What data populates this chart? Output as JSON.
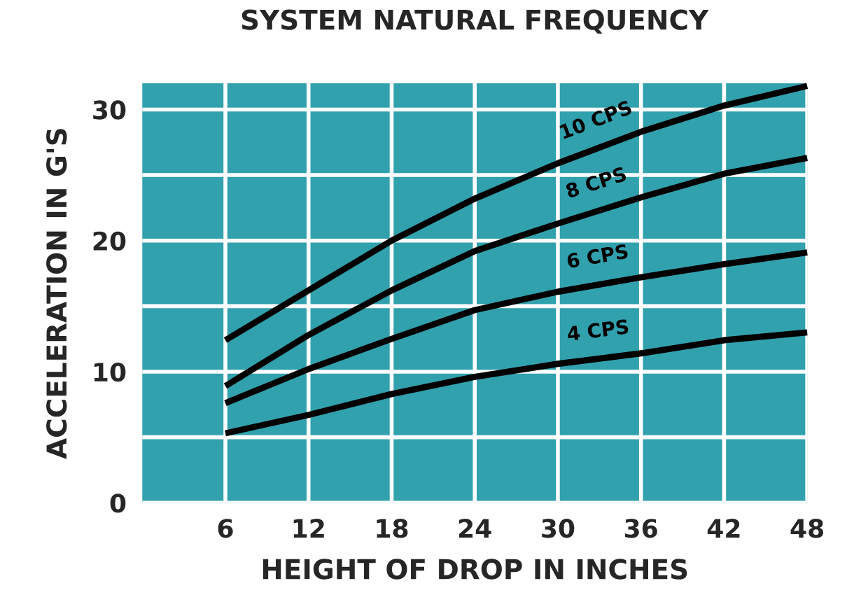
{
  "chart_data": {
    "type": "line",
    "title": "SYSTEM NATURAL FREQUENCY",
    "xlabel": "HEIGHT OF DROP IN INCHES",
    "ylabel": "ACCELERATION IN G'S",
    "x": [
      6,
      12,
      18,
      24,
      30,
      36,
      42,
      48
    ],
    "series": [
      {
        "name": "10 CPS",
        "color": "#000000",
        "values": [
          12.4,
          16.2,
          20.0,
          23.2,
          25.9,
          28.3,
          30.3,
          31.8
        ]
      },
      {
        "name": "8 CPS",
        "color": "#000000",
        "values": [
          8.9,
          12.8,
          16.2,
          19.2,
          21.3,
          23.3,
          25.1,
          26.3
        ]
      },
      {
        "name": "6 CPS",
        "color": "#000000",
        "values": [
          7.6,
          10.2,
          12.5,
          14.7,
          16.1,
          17.2,
          18.2,
          19.1
        ]
      },
      {
        "name": "4 CPS",
        "color": "#000000",
        "values": [
          5.3,
          6.7,
          8.3,
          9.6,
          10.6,
          11.4,
          12.4,
          13.0
        ]
      }
    ],
    "xlim": [
      0,
      48
    ],
    "xticks": [
      6,
      12,
      18,
      24,
      30,
      36,
      42,
      48
    ],
    "ylim": [
      0,
      32
    ],
    "yticks": [
      0,
      {
        "value": 5,
        "label": null
      },
      10,
      {
        "value": 15,
        "label": null
      },
      20,
      {
        "value": 25,
        "label": null
      },
      30
    ],
    "grid": true,
    "marker": "none",
    "line_style": "solid"
  }
}
